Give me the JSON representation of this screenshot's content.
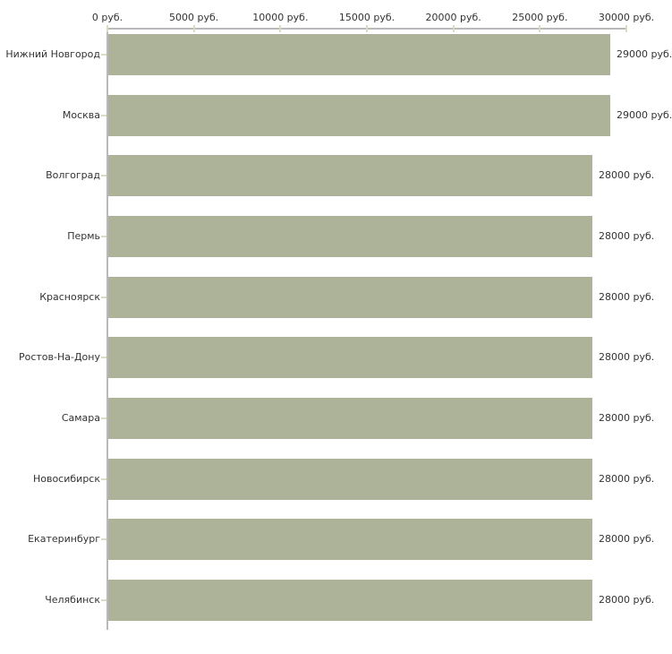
{
  "chart_data": {
    "type": "bar",
    "orientation": "horizontal",
    "title": "",
    "xlabel": "",
    "ylabel": "",
    "xlim": [
      0,
      30000
    ],
    "grid": false,
    "legend": "none",
    "categories": [
      "Нижний Новгород",
      "Москва",
      "Волгоград",
      "Пермь",
      "Красноярск",
      "Ростов-На-Дону",
      "Самара",
      "Новосибирск",
      "Екатеринбург",
      "Челябинск"
    ],
    "values": [
      29000,
      29000,
      28000,
      28000,
      28000,
      28000,
      28000,
      28000,
      28000,
      28000
    ],
    "value_labels": [
      "29000 руб.",
      "29000 руб.",
      "28000 руб.",
      "28000 руб.",
      "28000 руб.",
      "28000 руб.",
      "28000 руб.",
      "28000 руб.",
      "28000 руб.",
      "28000 руб."
    ],
    "x_tick_values": [
      0,
      5000,
      10000,
      15000,
      20000,
      25000,
      30000
    ],
    "x_tick_labels": [
      "0 руб.",
      "5000 руб.",
      "10000 руб.",
      "15000 руб.",
      "20000 руб.",
      "25000 руб.",
      "30000 руб."
    ],
    "colors": {
      "bar": "#adb399",
      "axis_line": "#b9b9b9",
      "tick_mark": "#d9dcbe",
      "text": "#333333",
      "background": "#ffffff"
    }
  }
}
